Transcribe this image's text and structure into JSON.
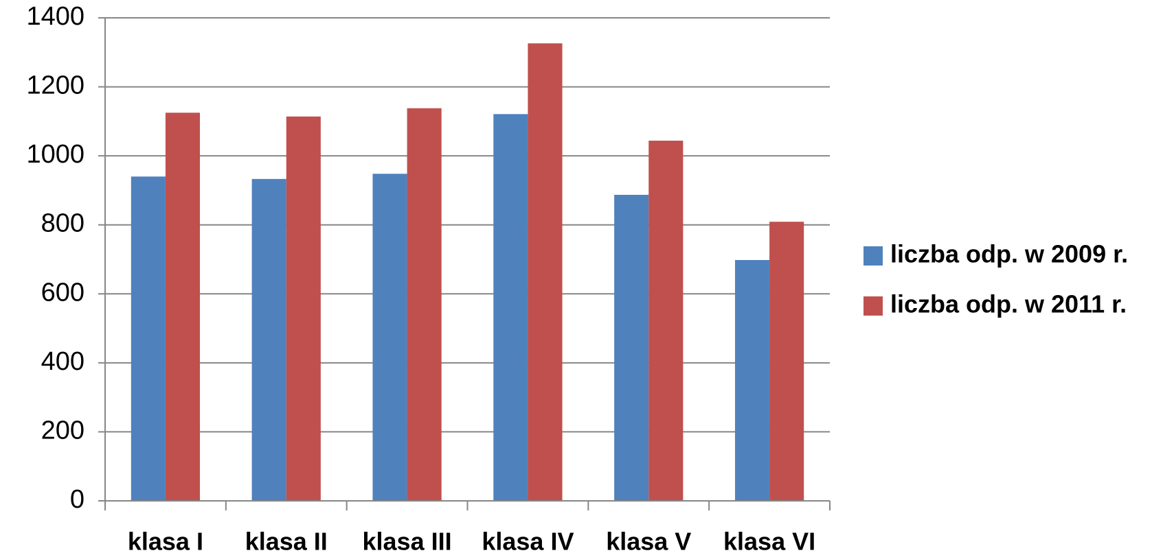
{
  "chart_data": {
    "type": "bar",
    "categories": [
      "klasa I",
      "klasa II",
      "klasa III",
      "klasa IV",
      "klasa V",
      "klasa VI"
    ],
    "series": [
      {
        "name": "liczba odp. w 2009 r.",
        "color": "#4f81bd",
        "values": [
          940,
          933,
          948,
          1121,
          887,
          698
        ]
      },
      {
        "name": "liczba odp. w 2011 r.",
        "color": "#c0504d",
        "values": [
          1125,
          1114,
          1138,
          1326,
          1044,
          809
        ]
      }
    ],
    "ylim": [
      0,
      1400
    ],
    "yticks": [
      0,
      200,
      400,
      600,
      800,
      1000,
      1200,
      1400
    ],
    "grid": true,
    "legend": "right"
  }
}
